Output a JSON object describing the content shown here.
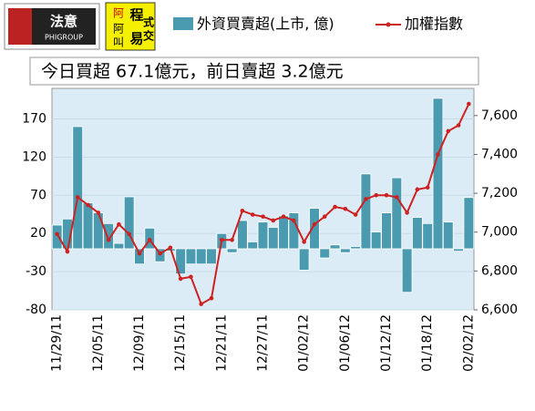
{
  "logos": {
    "left": "法意",
    "left_sub": "PHIGROUP",
    "right_chars": [
      "程",
      "式",
      "阿",
      "叫",
      "易",
      "交"
    ]
  },
  "chart_data": {
    "type": "bar+line",
    "title": "今日買超 67.1億元，前日賣超 3.2億元",
    "categories": [
      "11/29/11",
      null,
      null,
      null,
      "12/05/11",
      null,
      null,
      null,
      "12/09/11",
      null,
      null,
      null,
      "12/15/11",
      null,
      null,
      null,
      "12/21/11",
      null,
      null,
      null,
      "12/27/11",
      null,
      null,
      null,
      "01/02/12",
      null,
      null,
      null,
      "01/06/12",
      null,
      null,
      null,
      "01/12/12",
      null,
      null,
      null,
      "01/18/12",
      null,
      null,
      null,
      "02/02/12"
    ],
    "series": [
      {
        "name": "外資買賣超(上市, 億)",
        "type": "bar",
        "color": "#4a9ab0",
        "values": [
          31,
          39,
          160,
          60,
          47,
          33,
          7,
          68,
          -20,
          27,
          -17,
          -3,
          -33,
          -20,
          -20,
          -20,
          20,
          -5,
          37,
          9,
          35,
          28,
          43,
          47,
          -28,
          53,
          -12,
          5,
          -5,
          3,
          98,
          22,
          47,
          93,
          -57,
          41,
          33,
          197,
          35,
          -3.2,
          67.1
        ]
      },
      {
        "name": "加權指數",
        "type": "line",
        "axis": "y2",
        "color": "#cc2222",
        "values": [
          6990,
          6900,
          7180,
          7140,
          7100,
          6960,
          7040,
          6990,
          6890,
          6960,
          6890,
          6920,
          6760,
          6770,
          6630,
          6660,
          6960,
          6960,
          7110,
          7090,
          7080,
          7060,
          7080,
          7060,
          6950,
          7040,
          7080,
          7130,
          7120,
          7090,
          7170,
          7190,
          7190,
          7180,
          7100,
          7220,
          7230,
          7400,
          7520,
          7550,
          7660
        ]
      }
    ],
    "ylim": [
      -80,
      210
    ],
    "yticks": [
      -80,
      -30,
      20,
      70,
      120,
      170
    ],
    "y2lim": [
      6600,
      7740
    ],
    "y2ticks": [
      {
        "value": 6600,
        "label": "6,600"
      },
      {
        "value": 6800,
        "label": "6,800"
      },
      {
        "value": 7000,
        "label": "7,000"
      },
      {
        "value": 7200,
        "label": "7,200"
      },
      {
        "value": 7400,
        "label": "7,400"
      },
      {
        "value": 7600,
        "label": "7,600"
      }
    ]
  }
}
